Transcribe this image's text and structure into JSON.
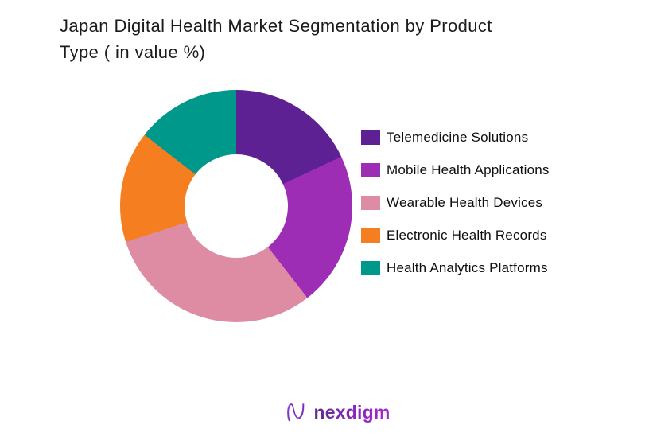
{
  "header": {
    "title_line1": "Japan Digital Health Market Segmentation by Product",
    "title_line2": "Type ( in value %)"
  },
  "chart_data": {
    "type": "pie",
    "variant": "donut",
    "title": "Japan Digital Health Market Segmentation by Product Type ( in value %)",
    "categories": [
      "Telemedicine Solutions",
      "Mobile Health Applications",
      "Wearable Health Devices",
      "Electronic Health Records",
      "Health Analytics Platforms"
    ],
    "values": [
      18,
      21.5,
      30.5,
      15.5,
      14.5
    ],
    "unit": "%",
    "colors": [
      "#5E2193",
      "#9D2DB4",
      "#DE8CA3",
      "#F57E20",
      "#00988A"
    ],
    "start_angle_deg": 0,
    "direction": "clockwise",
    "inner_radius_ratio": 0.445,
    "legend_position": "right",
    "data_labels": false
  },
  "brand": {
    "name": "nexdigm",
    "logo_icon": "nexdigm-wave-n-icon",
    "accent_color": "#8521BD"
  }
}
